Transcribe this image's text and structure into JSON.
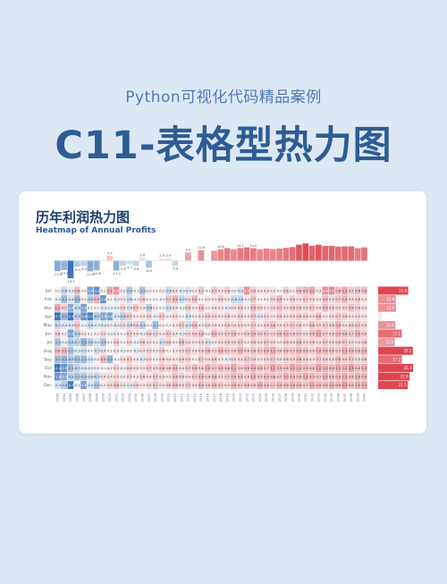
{
  "header": {
    "supertitle": "Python可视化代码精品案例",
    "title": "C11-表格型热力图"
  },
  "chart_data": {
    "type": "heatmap",
    "title": "历年利润热力图",
    "subtitle": "Heatmap of Annual Profits",
    "months": [
      "Jan",
      "Feb",
      "Mar",
      "Apr",
      "May",
      "Jun",
      "Jul",
      "Aug",
      "Sep",
      "Oct",
      "Nov",
      "Dec"
    ],
    "years": [
      "1993",
      "1994",
      "1995",
      "1996",
      "1997",
      "1998",
      "1999",
      "2000",
      "2001",
      "2002",
      "2003",
      "2004",
      "2005",
      "2006",
      "2007",
      "2008",
      "2009",
      "2010",
      "2011",
      "2012",
      "2013",
      "2014",
      "2015",
      "2016",
      "2017",
      "2018",
      "2019",
      "2020",
      "2021",
      "2022",
      "2023",
      "2024",
      "2025",
      "2026",
      "2027",
      "2028",
      "2029",
      "2030",
      "2031",
      "2032",
      "2033",
      "2034",
      "2035",
      "2036",
      "2037",
      "2038",
      "2039",
      "2040"
    ],
    "annual_totals": [
      -11.8,
      -10.4,
      -19.7,
      -6.9,
      -6.0,
      -11.8,
      -10.8,
      0,
      5.5,
      -11.0,
      -5.8,
      -4.1,
      -5.8,
      3.6,
      -8.0,
      0,
      2.9,
      2.9,
      -5.4,
      0,
      9.3,
      0,
      11.8,
      0,
      11.1,
      12.8,
      14.1,
      12.8,
      14.1,
      14.9,
      14.0,
      12.8,
      13.6,
      12.9,
      13.6,
      14.4,
      15.2,
      17.9,
      19.3,
      16.8,
      17.9,
      16.4,
      16.5,
      15.7,
      15.9,
      16.0,
      14.0,
      14.9
    ],
    "annual_total_labels": [
      "-11.8",
      "-10.4",
      "-19.7",
      "-6.9",
      "-6.0",
      "-11.8",
      "-10.8",
      "",
      "5.5",
      "-11.0",
      "-5.8",
      "-4.1",
      "-5.8",
      "3.6",
      "-8.0",
      "",
      "2.9",
      "2.9",
      "-5.4",
      "",
      "9.3",
      "",
      "11.8",
      "",
      "",
      "12.8",
      "",
      "",
      "14.1",
      "",
      "14.0",
      "",
      "",
      "",
      "",
      "",
      "",
      "",
      "",
      "",
      "",
      "",
      "",
      "",
      "",
      "",
      "",
      ""
    ],
    "monthly_totals": [
      21.8,
      12.8,
      12.9,
      2.5,
      12.5,
      17.1,
      12.0,
      25.2,
      17.2,
      25.3,
      22.8,
      21.5
    ],
    "monthly_total_labels": [
      "21.8",
      "12.8",
      "12.9",
      "2.5",
      "12.5",
      "17.1",
      "12.0",
      "25.2",
      "17.2",
      "25.3",
      "22.8",
      "21.5"
    ],
    "cells": [
      [
        0.1,
        -0.6,
        -0.2,
        0.8,
        0.0,
        -1.6,
        -1.9,
        0.1,
        1.1,
        1.4,
        0.2,
        -0.9,
        -0.1,
        -1.0,
        0.2,
        0.1,
        0.2,
        -0.6,
        0.4,
        -0.3,
        -0.4,
        0.2,
        0.7,
        -0.1,
        0.7,
        0.3,
        0.6,
        0.2,
        -0.4,
        1.4,
        0.6,
        0.3,
        0.4,
        0.3,
        0.1,
        0.6,
        0.2,
        0.8,
        0.9,
        1.1,
        0.3,
        1.4,
        1.5,
        0.8,
        1.1,
        0.7,
        0.8,
        0.8
      ],
      [
        -0.2,
        -1.1,
        -0.4,
        -1.2,
        0.1,
        -0.8,
        0.9,
        -1.8,
        0.1,
        -0.3,
        0.3,
        -0.6,
        -0.1,
        0.6,
        0.1,
        0.1,
        -0.1,
        0.7,
        0.9,
        -0.6,
        0.4,
        0.8,
        0.1,
        0.3,
        0.3,
        0.6,
        0.3,
        -0.6,
        -0.6,
        -0.2,
        0.7,
        0.1,
        0.2,
        0.5,
        0.9,
        0.2,
        0.6,
        0.4,
        0.7,
        0.5,
        0.3,
        0.8,
        0.4,
        0.7,
        0.9,
        0.5,
        0.6,
        0.3
      ],
      [
        1.1,
        0.5,
        -1.4,
        -0.6,
        -1.6,
        0.1,
        0.1,
        -0.3,
        -0.2,
        -0.2,
        0.5,
        -0.4,
        0.7,
        0.3,
        -0.8,
        0.2,
        0.1,
        -0.5,
        0.4,
        -0.2,
        0.6,
        0.3,
        0.8,
        0.2,
        0.4,
        0.3,
        -0.3,
        0.4,
        0.6,
        0.2,
        0.8,
        0.5,
        0.3,
        0.5,
        0.7,
        0.4,
        0.6,
        0.6,
        0.5,
        0.7,
        0.4,
        0.9,
        0.6,
        0.5,
        0.5,
        0.8,
        0.6,
        0.4
      ],
      [
        -2.7,
        -1.2,
        -2.4,
        -0.8,
        -1.8,
        -2.2,
        -0.9,
        -1.5,
        -1.6,
        -0.4,
        -0.8,
        0.7,
        0.2,
        0.3,
        0.5,
        -0.2,
        0.7,
        -0.2,
        0.5,
        0.1,
        -0.5,
        0.2,
        0.4,
        0.6,
        0.5,
        0.3,
        0.6,
        0.3,
        0.6,
        0.3,
        0.7,
        -0.4,
        0.5,
        0.3,
        0.6,
        0.4,
        0.5,
        0.6,
        0.6,
        0.4,
        0.8,
        0.2,
        0.5,
        0.7,
        0.6,
        0.4,
        0.5,
        0.3
      ],
      [
        -0.7,
        -0.4,
        -0.4,
        0.7,
        -0.1,
        -0.6,
        -0.3,
        -0.4,
        0.3,
        -0.4,
        0.5,
        -0.6,
        0.6,
        -0.8,
        -0.1,
        -1.1,
        0.2,
        0.1,
        0.3,
        0.7,
        -0.5,
        0.8,
        0.3,
        0.5,
        0.4,
        0.3,
        0.6,
        0.4,
        0.5,
        0.3,
        0.7,
        0.2,
        0.6,
        0.8,
        0.4,
        0.5,
        0.7,
        0.6,
        0.3,
        0.8,
        0.5,
        0.7,
        0.6,
        0.9,
        0.4,
        0.6,
        0.7,
        0.5
      ],
      [
        0.6,
        0.2,
        -1.6,
        -0.8,
        0.3,
        0.1,
        0.2,
        0.5,
        -0.2,
        0.3,
        -0.1,
        0.7,
        0.4,
        -0.2,
        0.6,
        0.5,
        0.3,
        0.7,
        0.4,
        -0.3,
        0.5,
        0.6,
        0.8,
        0.2,
        0.9,
        0.5,
        0.7,
        0.8,
        0.4,
        0.6,
        0.9,
        0.6,
        0.7,
        0.5,
        0.8,
        0.9,
        0.6,
        0.7,
        0.5,
        0.8,
        1.1,
        0.7,
        0.6,
        0.9,
        0.8,
        0.7,
        1.0,
        0.6
      ],
      [
        -1.0,
        -0.2,
        -0.8,
        -0.7,
        -1.3,
        -0.8,
        -0.4,
        -1.0,
        0.1,
        0.6,
        0.1,
        0.5,
        -0.2,
        0.6,
        0.4,
        0.2,
        -0.5,
        0.6,
        0.2,
        0.8,
        0.4,
        0.3,
        0.5,
        -0.5,
        0.3,
        0.4,
        0.6,
        0.5,
        0.7,
        0.2,
        0.6,
        0.4,
        0.7,
        0.5,
        0.3,
        0.6,
        0.4,
        0.8,
        0.5,
        0.6,
        0.4,
        0.7,
        0.5,
        0.6,
        0.7,
        0.5,
        0.4,
        0.6
      ],
      [
        0.8,
        0.9,
        -1.0,
        -0.3,
        -0.5,
        0.1,
        -0.5,
        0.4,
        0.1,
        0.3,
        -0.2,
        0.2,
        -0.3,
        0.4,
        0.5,
        0.3,
        0.6,
        0.1,
        0.3,
        0.5,
        0.7,
        0.4,
        0.6,
        0.8,
        0.5,
        0.9,
        0.7,
        0.6,
        1.0,
        0.6,
        0.8,
        0.7,
        0.9,
        1.1,
        0.6,
        0.8,
        0.7,
        0.9,
        0.8,
        0.6,
        1.0,
        0.9,
        0.8,
        0.7,
        1.1,
        0.9,
        0.8,
        1.0
      ],
      [
        -1.1,
        -1.2,
        -0.9,
        -1.1,
        -1.1,
        -0.5,
        0.2,
        0.9,
        -1.2,
        -0.1,
        0.4,
        0.7,
        0.3,
        -0.4,
        0.5,
        0.2,
        0.6,
        0.4,
        0.3,
        0.6,
        0.5,
        0.1,
        0.7,
        0.4,
        0.6,
        0.3,
        -0.3,
        0.5,
        0.4,
        0.7,
        0.6,
        0.3,
        0.5,
        0.7,
        0.4,
        0.6,
        0.5,
        0.8,
        0.6,
        0.4,
        0.7,
        0.6,
        0.5,
        0.8,
        0.6,
        0.7,
        0.5,
        0.6
      ],
      [
        -2.4,
        -1.8,
        -1.1,
        -0.7,
        -0.4,
        -0.3,
        0.2,
        -0.1,
        0.2,
        0.5,
        -0.2,
        0.6,
        0.4,
        0.3,
        0.7,
        0.5,
        0.8,
        0.6,
        0.9,
        0.4,
        0.7,
        0.8,
        0.6,
        1.0,
        0.7,
        0.9,
        0.8,
        1.1,
        0.6,
        0.9,
        1.0,
        0.8,
        0.7,
        1.2,
        0.9,
        0.8,
        1.1,
        1.0,
        0.9,
        0.8,
        1.2,
        1.0,
        0.9,
        1.1,
        1.0,
        1.3,
        0.9,
        1.0
      ],
      [
        -1.8,
        -1.5,
        -0.8,
        -1.0,
        -0.9,
        -0.6,
        -0.7,
        0.4,
        0.4,
        0.5,
        0.2,
        0.5,
        0.3,
        0.6,
        0.4,
        0.7,
        0.5,
        0.3,
        0.8,
        0.6,
        0.4,
        0.7,
        0.9,
        0.6,
        0.8,
        0.5,
        0.7,
        0.9,
        0.8,
        0.6,
        1.0,
        0.7,
        0.9,
        0.8,
        0.7,
        1.0,
        0.9,
        0.8,
        1.1,
        0.9,
        0.7,
        1.0,
        0.8,
        0.9,
        1.1,
        0.8,
        1.0,
        0.9
      ],
      [
        -0.4,
        -0.8,
        -2.3,
        -0.1,
        -1.6,
        -0.4,
        -1.0,
        0.2,
        0.5,
        0.8,
        0.4,
        -0.4,
        0.6,
        0.3,
        0.5,
        0.7,
        0.4,
        0.6,
        0.8,
        0.5,
        0.7,
        0.4,
        0.9,
        0.6,
        0.8,
        0.7,
        0.5,
        0.9,
        0.7,
        0.8,
        0.6,
        1.0,
        0.8,
        0.7,
        0.9,
        0.8,
        1.0,
        0.9,
        0.7,
        1.1,
        0.9,
        0.8,
        1.0,
        0.9,
        1.2,
        0.8,
        1.0,
        1.1
      ]
    ]
  }
}
